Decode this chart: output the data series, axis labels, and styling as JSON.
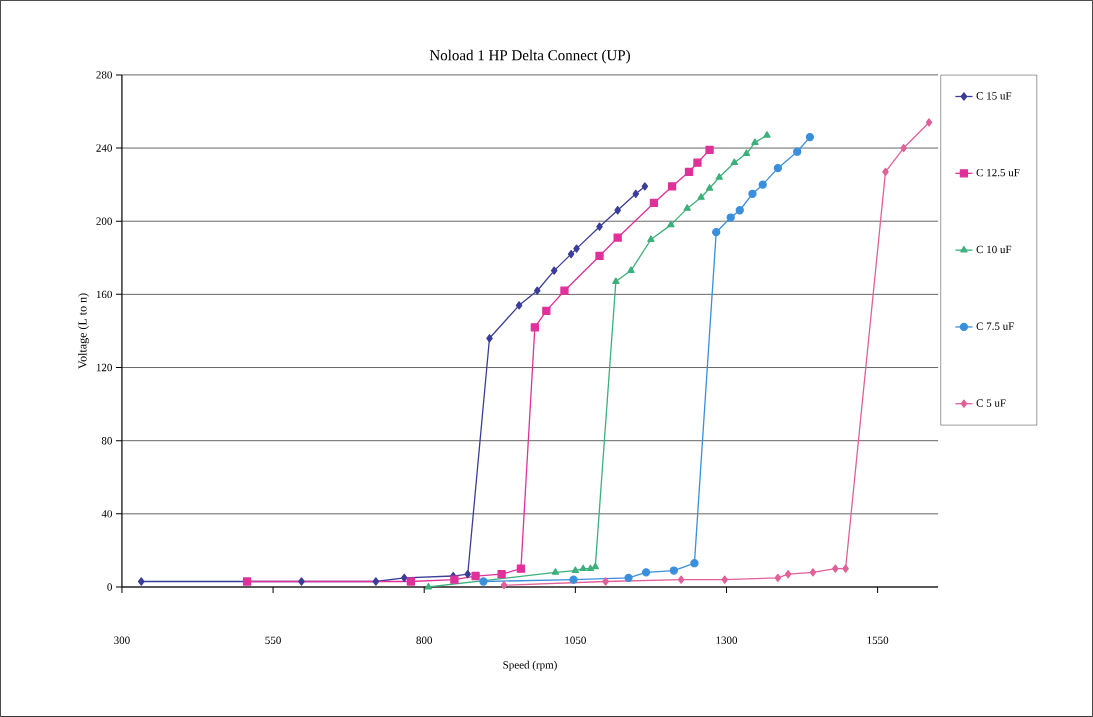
{
  "chart_data": {
    "type": "line",
    "title": "Noload 1 HP Delta Connect (UP)",
    "xlabel": "Speed (rpm)",
    "ylabel": "Voltage (L to n)",
    "xlim": [
      300,
      1650
    ],
    "xticks": [
      300,
      550,
      800,
      1050,
      1300,
      1550
    ],
    "ylim": [
      0,
      280
    ],
    "yticks": [
      0,
      40,
      80,
      120,
      160,
      200,
      240,
      280
    ],
    "grid": "y",
    "legend": "right",
    "series": [
      {
        "name": "C 15 uF",
        "color": "#3b3d9a",
        "marker": "diamond",
        "x": [
          332,
          597,
          720,
          767,
          848,
          872,
          908,
          957,
          987,
          1015,
          1043,
          1052,
          1090,
          1120,
          1150,
          1165
        ],
        "values": [
          3,
          3,
          3,
          5,
          6,
          7,
          136,
          154,
          162,
          173,
          182,
          185,
          197,
          206,
          215,
          219
        ]
      },
      {
        "name": "C 12.5 uF",
        "color": "#e0309a",
        "marker": "square",
        "x": [
          507,
          778,
          850,
          885,
          928,
          960,
          983,
          1002,
          1032,
          1090,
          1120,
          1180,
          1210,
          1238,
          1252,
          1272
        ],
        "values": [
          3,
          3,
          4,
          6,
          7,
          10,
          142,
          151,
          162,
          181,
          191,
          210,
          219,
          227,
          232,
          239
        ]
      },
      {
        "name": "C 10 uF",
        "color": "#3cb07a",
        "marker": "triangle",
        "x": [
          807,
          1017,
          1050,
          1063,
          1075,
          1083,
          1117,
          1142,
          1175,
          1208,
          1235,
          1258,
          1272,
          1288,
          1313,
          1333,
          1347,
          1367
        ],
        "values": [
          0,
          8,
          9,
          10,
          10,
          11,
          167,
          173,
          190,
          198,
          207,
          213,
          218,
          224,
          232,
          237,
          243,
          247
        ]
      },
      {
        "name": "C 7.5 uF",
        "color": "#3a8fdc",
        "marker": "circle",
        "x": [
          898,
          1047,
          1138,
          1167,
          1213,
          1247,
          1283,
          1307,
          1322,
          1343,
          1360,
          1385,
          1417,
          1438
        ],
        "values": [
          3,
          4,
          5,
          8,
          9,
          13,
          194,
          202,
          206,
          215,
          220,
          229,
          238,
          246
        ]
      },
      {
        "name": "C 5 uF",
        "color": "#e0609a",
        "marker": "diamond",
        "x": [
          932,
          1100,
          1225,
          1297,
          1385,
          1402,
          1443,
          1480,
          1497,
          1563,
          1593,
          1635
        ],
        "values": [
          1,
          3,
          4,
          4,
          5,
          7,
          8,
          10,
          10,
          227,
          240,
          254
        ]
      }
    ]
  }
}
